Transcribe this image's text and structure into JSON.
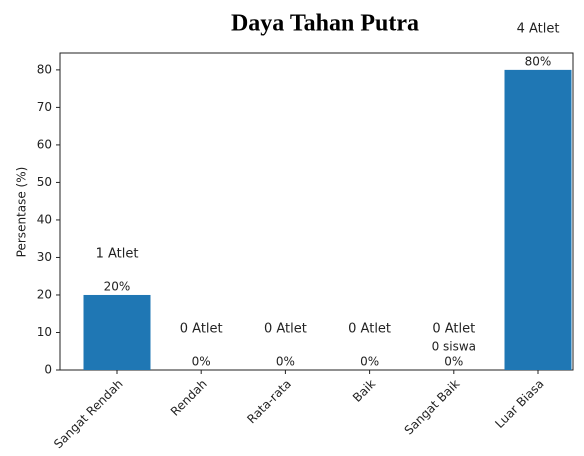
{
  "chart_data": {
    "type": "bar",
    "title": "Daya Tahan Putra",
    "y_label": "Persentase (%)",
    "categories": [
      "Sangat Rendah",
      "Rendah",
      "Rata-rata",
      "Baik",
      "Sangat Baik",
      "Luar Biasa"
    ],
    "values": [
      20,
      0,
      0,
      0,
      0,
      80
    ],
    "value_labels": [
      "20%",
      "0%",
      "0%",
      "0%",
      "0%",
      "80%"
    ],
    "annotations": [
      "1 Atlet",
      "0 Atlet",
      "0 Atlet",
      "0 Atlet",
      "0 Atlet",
      "4 Atlet"
    ],
    "secondary_labels": [
      null,
      null,
      null,
      null,
      "0 siswa",
      null
    ],
    "color": "#1f77b4",
    "ylim": [
      0,
      84.5
    ],
    "yticks": [
      0,
      10,
      20,
      30,
      40,
      50,
      60,
      70,
      80
    ],
    "grid": false
  }
}
